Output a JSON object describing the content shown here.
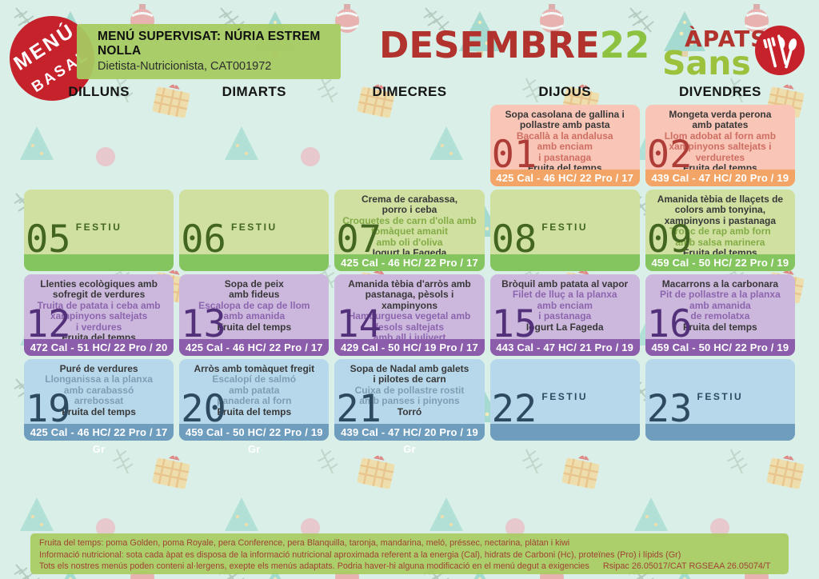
{
  "colors": {
    "page_bg": "#d9efe8",
    "badge_red": "#c5222c",
    "banner_green": "#a6ca61",
    "title_red": "#b2322e",
    "title_green": "#8cc240",
    "dark_text": "#383838"
  },
  "header": {
    "badge": {
      "line1": "MENÚ",
      "line2": "BASAL"
    },
    "supervision": {
      "line1": "MENÚ SUPERVISAT: NÚRIA ESTREM NOLLA",
      "line2": "Dietista-Nutricionista, CAT001972"
    },
    "title": {
      "month": "DESEMBRE",
      "year": "22"
    },
    "logo": {
      "line1": "ÀPATS",
      "line2": "Sans"
    }
  },
  "days": [
    "DILLUNS",
    "DIMARTS",
    "DIMECRES",
    "DIJOUS",
    "DIVENDRES"
  ],
  "row_themes": [
    {
      "body": "#f9c5b6",
      "footer": "#f2a566",
      "accent": "#cf6e62",
      "num": "#ae3d37"
    },
    {
      "body": "#cfe0a0",
      "footer": "#84c55f",
      "accent": "#83ac46",
      "num": "#42661f"
    },
    {
      "body": "#ccb8dd",
      "footer": "#8b5daa",
      "accent": "#8d64ae",
      "num": "#53307a"
    },
    {
      "body": "#b7d8eb",
      "footer": "#6f9dbe",
      "accent": "#7e9fb3",
      "num": "#2d4a60"
    }
  ],
  "weeks": [
    {
      "cells": [
        null,
        null,
        null,
        {
          "type": "menu",
          "num": "01",
          "first": "Sopa casolana de gallina i\npollastre amb pasta",
          "second": "Bacallà a la andalusa\namb enciam\ni pastanaga",
          "third": "Fruita del temps",
          "nutrition": "425 Cal - 46 HC/ 22 Pro / 17 Gr"
        },
        {
          "type": "menu",
          "num": "02",
          "first": "Mongeta verda perona\namb patates",
          "second": "Llom adobat al forn amb\nxampinyons saltejats i\nverduretes",
          "third": "Fruita del temps",
          "nutrition": "439 Cal - 47 HC/ 20 Pro / 19 Gr"
        }
      ]
    },
    {
      "cells": [
        {
          "type": "festiu",
          "num": "05",
          "label": "FESTIU"
        },
        {
          "type": "festiu",
          "num": "06",
          "label": "FESTIU"
        },
        {
          "type": "menu",
          "num": "07",
          "first": "Crema de carabassa,\nporro i ceba",
          "second": "Croquetes de carn d'olla amb\ntomàquet amanit\namb oli d'oliva",
          "third": "Iogurt la Fageda",
          "nutrition": "425 Cal - 46 HC/ 22 Pro / 17 Gr"
        },
        {
          "type": "festiu",
          "num": "08",
          "label": "FESTIU"
        },
        {
          "type": "menu",
          "num": "09",
          "first": "Amanida tèbia de llaçets de\ncolors amb tonyina,\nxampinyons i pastanaga",
          "second": "Tronc de rap amb forn\namb salsa marinera",
          "third": "Fruita del temps",
          "nutrition": "459 Cal - 50 HC/ 22 Pro / 19 Gr"
        }
      ]
    },
    {
      "cells": [
        {
          "type": "menu",
          "num": "12",
          "first": "Llenties ecològiques amb\nsofregit de verdures",
          "second": "Truita de patata i ceba amb\nxampinyons saltejats\ni verdures",
          "third": "Fruita del temps",
          "nutrition": "472 Cal - 51 HC/ 22 Pro / 20 Gr"
        },
        {
          "type": "menu",
          "num": "13",
          "first": "Sopa de peix\namb fideus",
          "second": "Escalopa de cap de llom\namb amanida",
          "third": "Fruita del temps",
          "nutrition": "425 Cal - 46 HC/ 22 Pro / 17 Gr"
        },
        {
          "type": "menu",
          "num": "14",
          "first": "Amanida tèbia d'arròs amb\npastanaga, pèsols i xampinyons",
          "second": "Hamburguesa vegetal amb\nfesols saltejats\namb all i julivert",
          "third": "Fruita del temps",
          "nutrition": "429 Cal - 50 HC/ 19 Pro / 17 Gr"
        },
        {
          "type": "menu",
          "num": "15",
          "first": "Bròquil amb patata al vapor",
          "second": "Filet de lluç a la planxa\namb enciam\ni pastanaga",
          "third": "Iogurt La Fageda",
          "nutrition": "443 Cal - 47 HC/ 21 Pro / 19 Gr"
        },
        {
          "type": "menu",
          "num": "16",
          "first": "Macarrons a la carbonara",
          "second": "Pit de pollastre a la planxa\namb amanida\nde remolatxa",
          "third": "Fruita del temps",
          "nutrition": "459 Cal - 50 HC/ 22 Pro / 19 Gr"
        }
      ]
    },
    {
      "cells": [
        {
          "type": "menu",
          "num": "19",
          "first": "Puré de verdures",
          "second": "Llonganissa a la planxa\namb carabassó\narrebossat",
          "third": "Fruita del temps",
          "nutrition": "425 Cal - 46 HC/ 22 Pro / 17 Gr"
        },
        {
          "type": "menu",
          "num": "20",
          "first": "Arròs amb tomàquet fregit",
          "second": "Escalopí de salmó\namb patata\npanadera al forn",
          "third": "Fruita del temps",
          "nutrition": "459 Cal - 50 HC/ 22 Pro / 19 Gr"
        },
        {
          "type": "menu",
          "num": "21",
          "first": "Sopa de Nadal amb galets\ni pilotes de carn",
          "second": "Cuixa de pollastre rostit\namb panses i pinyons",
          "third": "Torró",
          "nutrition": "439 Cal - 47 HC/ 20 Pro / 19 Gr"
        },
        {
          "type": "festiu",
          "num": "22",
          "label": "FESTIU"
        },
        {
          "type": "festiu",
          "num": "23",
          "label": "FESTIU"
        }
      ]
    }
  ],
  "footer": {
    "lines": [
      "Fruita del temps: poma Golden, poma Royale, pera Conference, pera Blanquilla, taronja, mandarina, meló, préssec, nectarina, plàtan i kiwi",
      "Informació nutricional: sota cada àpat es disposa de la informació nutricional aproximada referent a la energia (Cal), hidrats de Carboni (Hc), proteïnes (Pro) i lípids (Gr)",
      "Tots els nostres menús poden conteni al·lergens, exepte els menús adaptats. Podria haver-hi alguna modificació en el menú degut a exigencies"
    ],
    "registry": "Rsipac 26.05017/CAT RGSEAA 26.05074/T"
  }
}
